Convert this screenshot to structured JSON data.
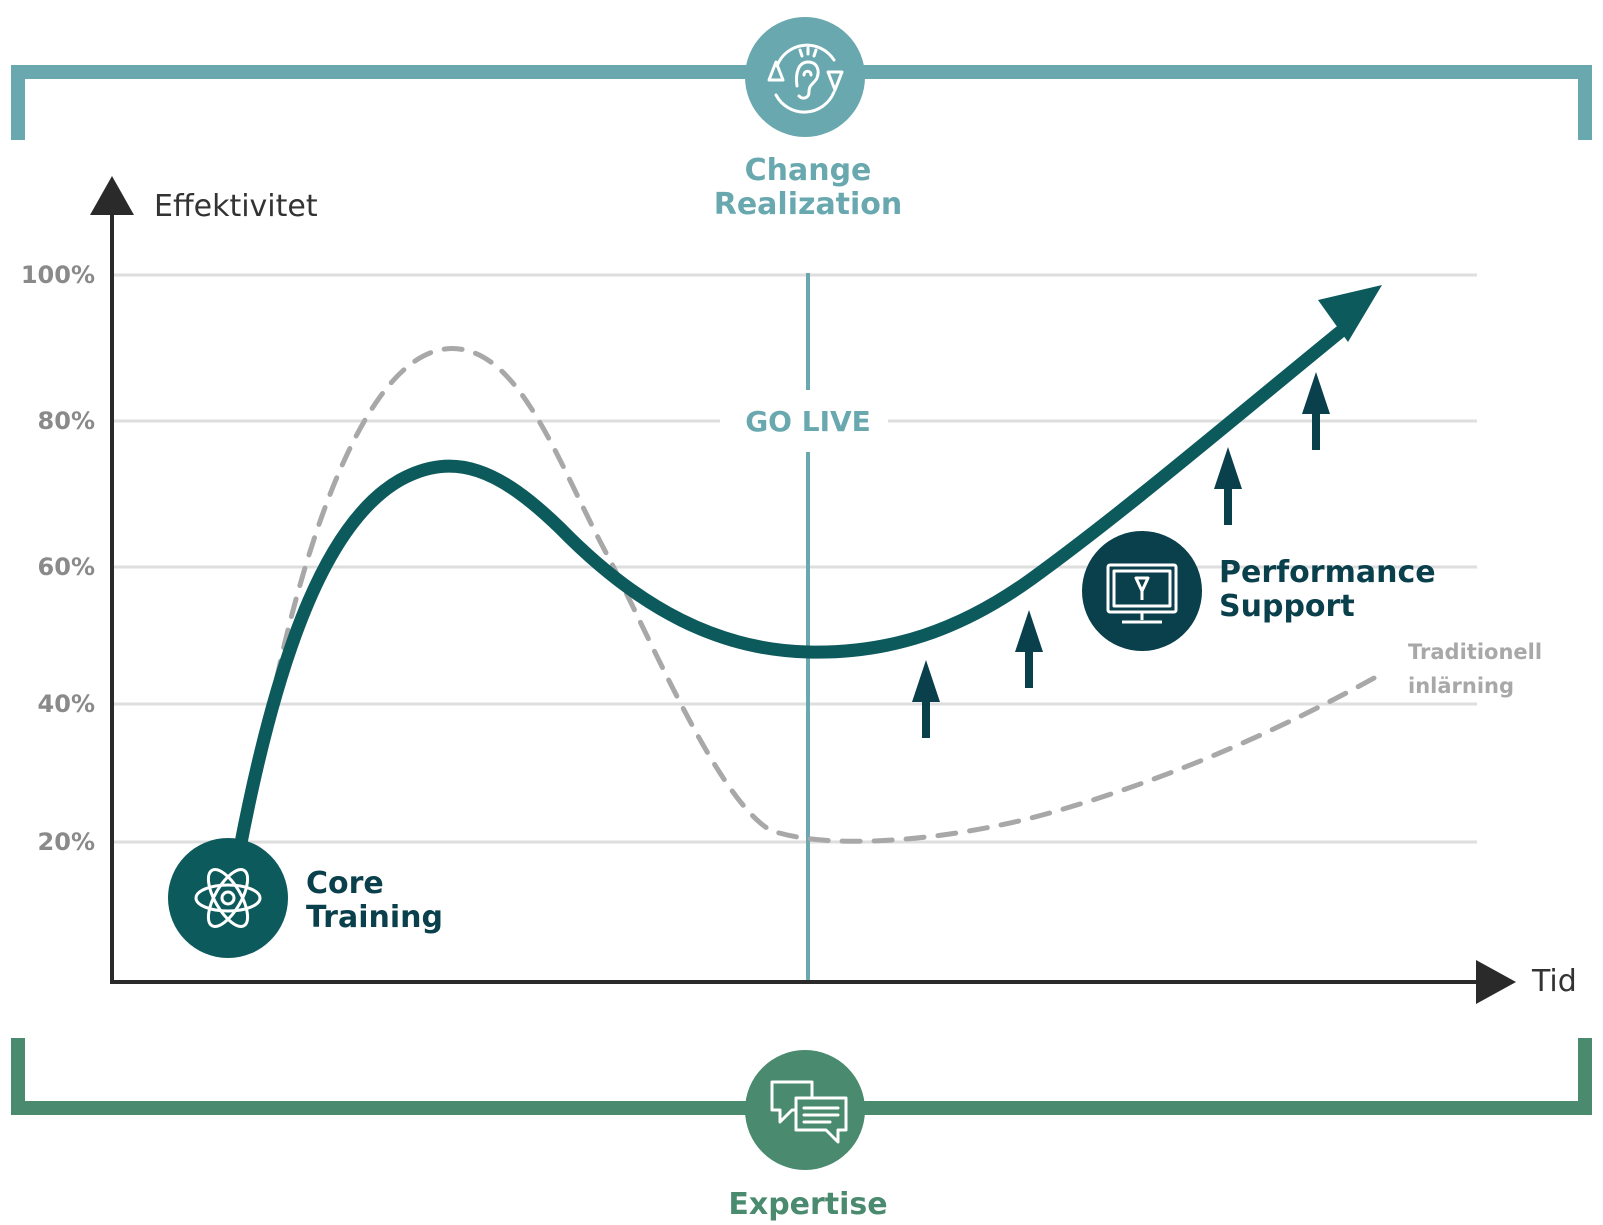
{
  "top_bracket": {
    "label_line1": "Change",
    "label_line2": "Realization",
    "icon": "ear-cycle-icon",
    "color": "#68a8ae"
  },
  "bottom_bracket": {
    "label": "Expertise",
    "icon": "chat-bubbles-icon",
    "color": "#4a8a6e"
  },
  "axes": {
    "y_label": "Effektivitet",
    "x_label": "Tid",
    "y_ticks": [
      "100%",
      "80%",
      "60%",
      "40%",
      "20%"
    ]
  },
  "markers": {
    "go_live": "GO LIVE",
    "go_live_color": "#68a8ae"
  },
  "nodes": {
    "core_training": {
      "line1": "Core",
      "line2": "Training",
      "icon": "atom-icon",
      "color": "#0d5a5d"
    },
    "performance_support": {
      "line1": "Performance",
      "line2": "Support",
      "icon": "monitor-icon",
      "color": "#0a3f4c"
    }
  },
  "curves": {
    "main_color": "#0d5a5d",
    "traditional_label_line1": "Traditionell",
    "traditional_label_line2": "inlärning",
    "traditional_color": "#a8a8a8"
  }
}
